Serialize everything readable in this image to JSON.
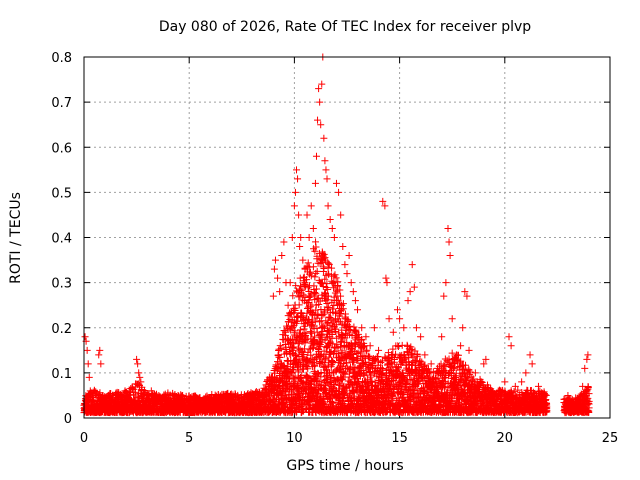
{
  "chart_data": {
    "type": "scatter",
    "title": "Day 080 of 2026, Rate Of TEC Index for receiver plvp",
    "xlabel": "GPS time / hours",
    "ylabel": "ROTI / TECUs",
    "xlim": [
      0,
      25
    ],
    "ylim": [
      0,
      0.8
    ],
    "xticks": [
      0,
      5,
      10,
      15,
      20,
      25
    ],
    "yticks": [
      0,
      0.1,
      0.2,
      0.3,
      0.4,
      0.5,
      0.6,
      0.7,
      0.8
    ],
    "ytick_labels": [
      "0",
      "0.1",
      "0.2",
      "0.3",
      "0.4",
      "0.5",
      "0.6",
      "0.7",
      "0.8"
    ],
    "grid": true,
    "marker": "+",
    "color": "#ff0000",
    "points": [
      [
        0.05,
        0.18
      ],
      [
        0.1,
        0.17
      ],
      [
        0.15,
        0.15
      ],
      [
        0.2,
        0.12
      ],
      [
        0.25,
        0.09
      ],
      [
        0.3,
        0.06
      ],
      [
        0.7,
        0.14
      ],
      [
        0.75,
        0.15
      ],
      [
        0.8,
        0.12
      ],
      [
        2.5,
        0.13
      ],
      [
        2.55,
        0.12
      ],
      [
        2.6,
        0.1
      ],
      [
        2.65,
        0.09
      ],
      [
        2.7,
        0.08
      ],
      [
        3.0,
        0.05
      ],
      [
        3.2,
        0.06
      ],
      [
        9.0,
        0.27
      ],
      [
        9.05,
        0.33
      ],
      [
        9.1,
        0.35
      ],
      [
        9.2,
        0.31
      ],
      [
        9.3,
        0.28
      ],
      [
        9.4,
        0.36
      ],
      [
        9.5,
        0.39
      ],
      [
        9.6,
        0.3
      ],
      [
        9.7,
        0.25
      ],
      [
        9.8,
        0.3
      ],
      [
        9.9,
        0.4
      ],
      [
        10.0,
        0.47
      ],
      [
        10.05,
        0.5
      ],
      [
        10.1,
        0.55
      ],
      [
        10.15,
        0.53
      ],
      [
        10.2,
        0.45
      ],
      [
        10.25,
        0.38
      ],
      [
        10.3,
        0.4
      ],
      [
        10.4,
        0.35
      ],
      [
        10.5,
        0.3
      ],
      [
        10.6,
        0.45
      ],
      [
        10.7,
        0.4
      ],
      [
        10.8,
        0.47
      ],
      [
        10.9,
        0.42
      ],
      [
        11.0,
        0.52
      ],
      [
        11.05,
        0.58
      ],
      [
        11.1,
        0.66
      ],
      [
        11.15,
        0.73
      ],
      [
        11.2,
        0.7
      ],
      [
        11.25,
        0.65
      ],
      [
        11.3,
        0.74
      ],
      [
        11.35,
        0.8
      ],
      [
        11.4,
        0.62
      ],
      [
        11.45,
        0.57
      ],
      [
        11.5,
        0.55
      ],
      [
        11.55,
        0.53
      ],
      [
        11.6,
        0.47
      ],
      [
        11.7,
        0.44
      ],
      [
        11.8,
        0.42
      ],
      [
        11.9,
        0.4
      ],
      [
        12.0,
        0.52
      ],
      [
        12.1,
        0.5
      ],
      [
        12.2,
        0.45
      ],
      [
        12.3,
        0.38
      ],
      [
        12.4,
        0.34
      ],
      [
        12.5,
        0.32
      ],
      [
        12.6,
        0.36
      ],
      [
        12.7,
        0.3
      ],
      [
        12.8,
        0.28
      ],
      [
        12.9,
        0.26
      ],
      [
        13.0,
        0.24
      ],
      [
        13.2,
        0.2
      ],
      [
        13.4,
        0.18
      ],
      [
        13.6,
        0.16
      ],
      [
        13.8,
        0.2
      ],
      [
        14.0,
        0.15
      ],
      [
        14.2,
        0.48
      ],
      [
        14.3,
        0.47
      ],
      [
        14.35,
        0.31
      ],
      [
        14.4,
        0.3
      ],
      [
        14.5,
        0.22
      ],
      [
        14.7,
        0.19
      ],
      [
        14.9,
        0.24
      ],
      [
        15.0,
        0.22
      ],
      [
        15.2,
        0.2
      ],
      [
        15.4,
        0.26
      ],
      [
        15.5,
        0.28
      ],
      [
        15.6,
        0.34
      ],
      [
        15.7,
        0.29
      ],
      [
        15.8,
        0.2
      ],
      [
        16.0,
        0.18
      ],
      [
        16.2,
        0.14
      ],
      [
        16.5,
        0.12
      ],
      [
        16.8,
        0.11
      ],
      [
        17.0,
        0.18
      ],
      [
        17.1,
        0.27
      ],
      [
        17.2,
        0.3
      ],
      [
        17.3,
        0.42
      ],
      [
        17.35,
        0.39
      ],
      [
        17.4,
        0.36
      ],
      [
        17.5,
        0.22
      ],
      [
        17.7,
        0.14
      ],
      [
        17.9,
        0.16
      ],
      [
        18.0,
        0.2
      ],
      [
        18.1,
        0.28
      ],
      [
        18.2,
        0.27
      ],
      [
        18.3,
        0.15
      ],
      [
        18.6,
        0.1
      ],
      [
        18.9,
        0.08
      ],
      [
        19.0,
        0.12
      ],
      [
        19.1,
        0.13
      ],
      [
        19.3,
        0.06
      ],
      [
        19.6,
        0.05
      ],
      [
        19.8,
        0.06
      ],
      [
        20.0,
        0.08
      ],
      [
        20.2,
        0.18
      ],
      [
        20.3,
        0.16
      ],
      [
        20.5,
        0.07
      ],
      [
        20.8,
        0.08
      ],
      [
        21.0,
        0.1
      ],
      [
        21.2,
        0.14
      ],
      [
        21.3,
        0.12
      ],
      [
        21.6,
        0.07
      ],
      [
        21.9,
        0.05
      ],
      [
        23.0,
        0.05
      ],
      [
        23.2,
        0.04
      ],
      [
        23.5,
        0.04
      ],
      [
        23.7,
        0.07
      ],
      [
        23.8,
        0.11
      ],
      [
        23.9,
        0.13
      ],
      [
        23.95,
        0.14
      ]
    ],
    "envelope": [
      [
        0,
        0.035
      ],
      [
        0.5,
        0.05
      ],
      [
        1,
        0.04
      ],
      [
        1.5,
        0.045
      ],
      [
        2,
        0.05
      ],
      [
        2.5,
        0.07
      ],
      [
        3,
        0.045
      ],
      [
        3.5,
        0.04
      ],
      [
        4,
        0.045
      ],
      [
        4.5,
        0.04
      ],
      [
        5,
        0.04
      ],
      [
        5.5,
        0.035
      ],
      [
        6,
        0.04
      ],
      [
        6.5,
        0.04
      ],
      [
        7,
        0.045
      ],
      [
        7.5,
        0.04
      ],
      [
        8,
        0.045
      ],
      [
        8.5,
        0.05
      ],
      [
        9,
        0.1
      ],
      [
        9.5,
        0.18
      ],
      [
        10,
        0.28
      ],
      [
        10.5,
        0.32
      ],
      [
        11,
        0.38
      ],
      [
        11.5,
        0.35
      ],
      [
        12,
        0.3
      ],
      [
        12.5,
        0.22
      ],
      [
        13,
        0.18
      ],
      [
        13.5,
        0.14
      ],
      [
        14,
        0.13
      ],
      [
        14.5,
        0.14
      ],
      [
        15,
        0.16
      ],
      [
        15.5,
        0.15
      ],
      [
        16,
        0.12
      ],
      [
        16.5,
        0.09
      ],
      [
        17,
        0.11
      ],
      [
        17.5,
        0.14
      ],
      [
        18,
        0.12
      ],
      [
        18.5,
        0.08
      ],
      [
        19,
        0.07
      ],
      [
        19.5,
        0.05
      ],
      [
        20,
        0.05
      ],
      [
        20.5,
        0.05
      ],
      [
        21,
        0.05
      ],
      [
        21.5,
        0.05
      ],
      [
        22,
        0.045
      ],
      [
        23,
        0.03
      ],
      [
        23.5,
        0.035
      ],
      [
        24,
        0.06
      ]
    ]
  }
}
